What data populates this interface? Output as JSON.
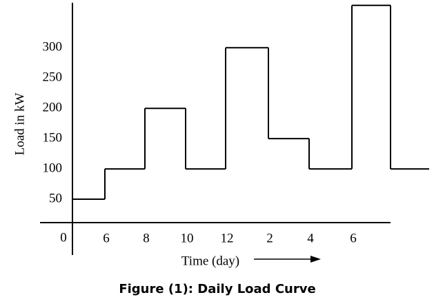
{
  "chart_data": {
    "type": "step",
    "title": "Figure (1): Daily Load Curve",
    "ylabel": "Load in kW",
    "xlabel": "Time (day)",
    "origin_label": "0",
    "xticks": [
      "6",
      "8",
      "10",
      "12",
      "2",
      "4",
      "6"
    ],
    "values": [
      50,
      100,
      200,
      100,
      300,
      150,
      100,
      370,
      100
    ],
    "color": "#000000",
    "ylim": [
      0,
      372
    ],
    "yticks": [
      50,
      100,
      150,
      200,
      250,
      300
    ]
  }
}
